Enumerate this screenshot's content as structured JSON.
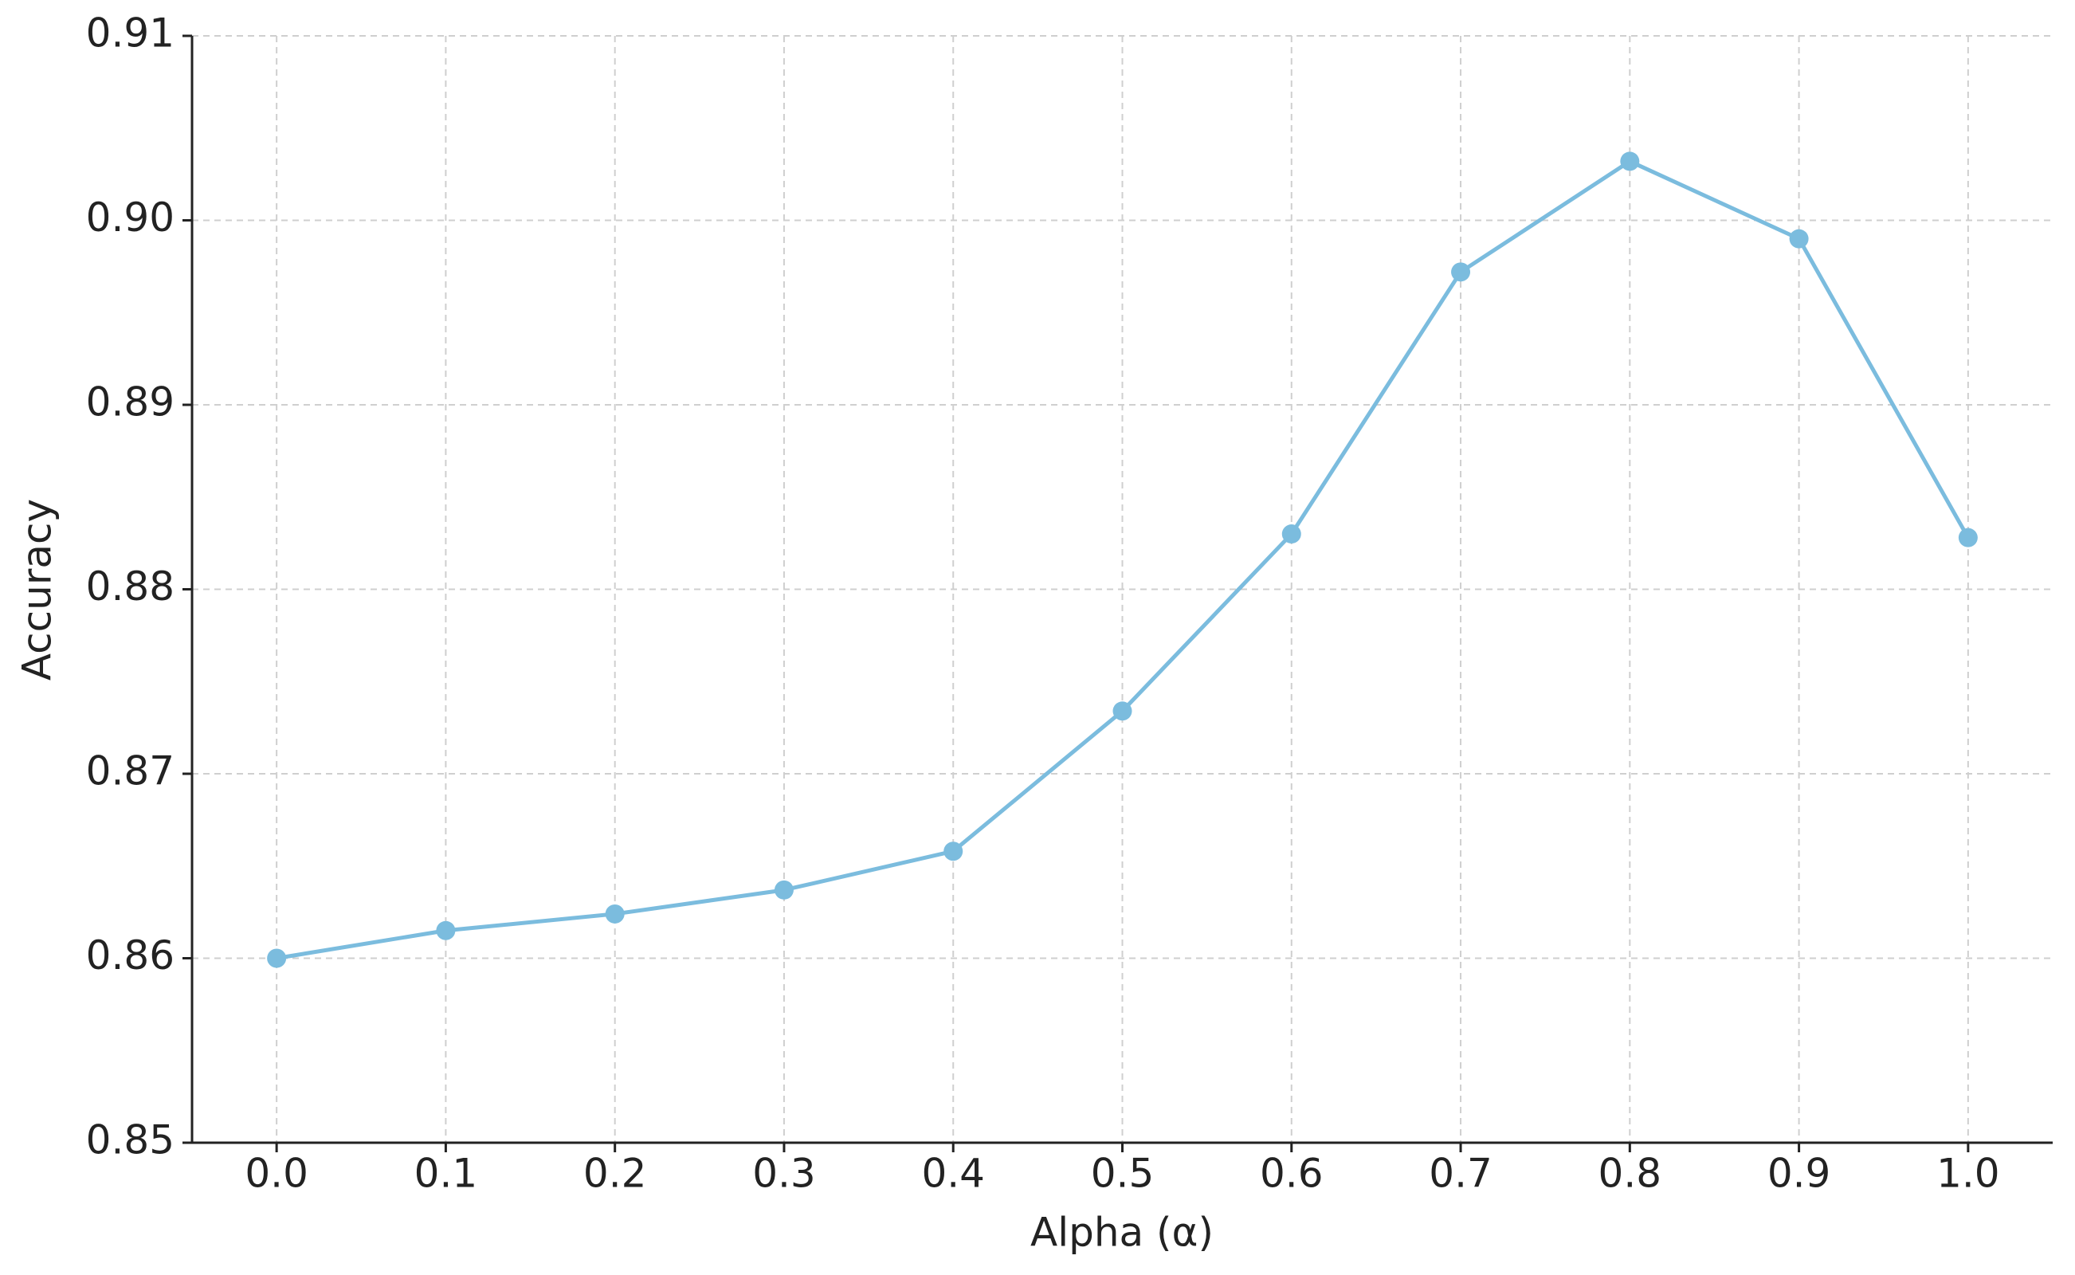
{
  "chart_data": {
    "type": "line",
    "x_label": "Alpha (α)",
    "y_label": "Accuracy",
    "x": [
      0,
      0.1,
      0.2,
      0.3,
      0.4,
      0.5,
      0.6,
      0.7,
      0.8,
      0.9,
      1.0
    ],
    "series": [
      {
        "name": "Accuracy",
        "color": "#7bbcde",
        "values": [
          0.86,
          0.8615,
          0.8624,
          0.8637,
          0.8658,
          0.8734,
          0.883,
          0.8972,
          0.9032,
          0.899,
          0.8828
        ]
      }
    ],
    "xlim": [
      -0.05,
      1.05
    ],
    "xticks": [
      {
        "value": 0,
        "label": "0.0"
      },
      0.1,
      0.2,
      0.3,
      0.4,
      0.5,
      0.6,
      0.7,
      0.8,
      0.9,
      {
        "value": 1,
        "label": "1.0"
      }
    ],
    "ylim": [
      0.85,
      0.91
    ],
    "yticks": [
      0.85,
      0.86,
      0.87,
      0.88,
      0.89,
      {
        "value": 0.9,
        "label": "0.90"
      },
      0.91
    ],
    "grid": true
  }
}
